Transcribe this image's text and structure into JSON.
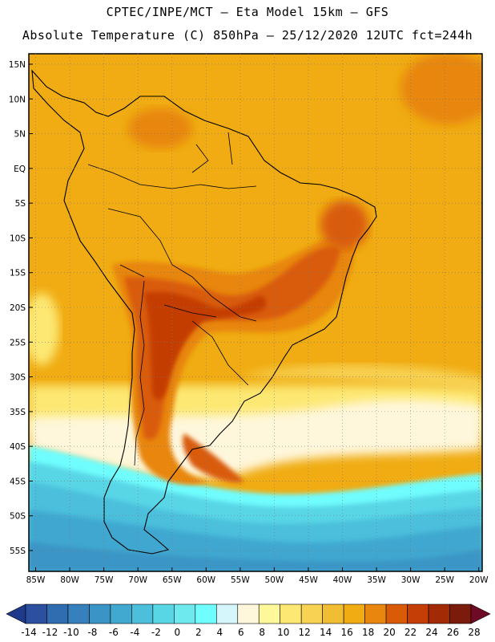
{
  "header": {
    "line1": "CPTEC/INPE/MCT –  Eta Model 15km – GFS",
    "line2": "Absolute Temperature (C) 850hPa – 25/12/2020 12UTC fct=244h"
  },
  "map": {
    "lat_labels": [
      "15N",
      "10N",
      "5N",
      "EQ",
      "5S",
      "10S",
      "15S",
      "20S",
      "25S",
      "30S",
      "35S",
      "40S",
      "45S",
      "50S",
      "55S"
    ],
    "lon_labels": [
      "85W",
      "80W",
      "75W",
      "70W",
      "65W",
      "60W",
      "55W",
      "50W",
      "45W",
      "40W",
      "35W",
      "30W",
      "25W",
      "20W"
    ],
    "lat_values": [
      15,
      10,
      5,
      0,
      -5,
      -10,
      -15,
      -20,
      -25,
      -30,
      -35,
      -40,
      -45,
      -50,
      -55
    ],
    "lon_values": [
      -85,
      -80,
      -75,
      -70,
      -65,
      -60,
      -55,
      -50,
      -45,
      -40,
      -35,
      -30,
      -25,
      -20
    ],
    "lat_range": [
      -58,
      16.5
    ],
    "lon_range": [
      -86,
      -19.5
    ],
    "grid": "dotted"
  },
  "colorbar": {
    "labels": [
      "-14",
      "-12",
      "-10",
      "-8",
      "-6",
      "-4",
      "-2",
      "0",
      "2",
      "4",
      "6",
      "8",
      "10",
      "12",
      "14",
      "16",
      "18",
      "20",
      "22",
      "24",
      "26",
      "28"
    ],
    "colors": [
      "#1f3a8a",
      "#2c4fa0",
      "#2f6cb0",
      "#3580bd",
      "#3a95c6",
      "#41a8d0",
      "#4cbfdc",
      "#59d6e6",
      "#6ee9ee",
      "#6ffdfd",
      "#d5f6fb",
      "#fff7dc",
      "#fff89a",
      "#fde873",
      "#f8d253",
      "#f1bd33",
      "#f0ac12",
      "#e8860e",
      "#d95b08",
      "#c43e05",
      "#a22a04",
      "#7a1b0c",
      "#6e0a25"
    ]
  }
}
